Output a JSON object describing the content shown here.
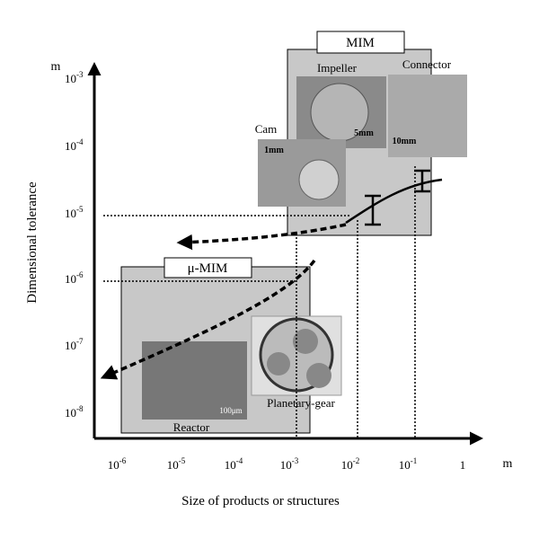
{
  "y_axis": {
    "unit": "m",
    "label": "Dimensional tolerance",
    "ticks": [
      {
        "base": "10",
        "exponent": "-3"
      },
      {
        "base": "10",
        "exponent": "-4"
      },
      {
        "base": "10",
        "exponent": "-5"
      },
      {
        "base": "10",
        "exponent": "-6"
      },
      {
        "base": "10",
        "exponent": "-7"
      },
      {
        "base": "10",
        "exponent": "-8"
      }
    ]
  },
  "x_axis": {
    "unit": "m",
    "label": "Size of products or structures",
    "ticks": [
      {
        "base": "10",
        "exponent": "-6"
      },
      {
        "base": "10",
        "exponent": "-5"
      },
      {
        "base": "10",
        "exponent": "-4"
      },
      {
        "base": "10",
        "exponent": "-3"
      },
      {
        "base": "10",
        "exponent": "-2"
      },
      {
        "base": "10",
        "exponent": "-1"
      },
      {
        "base": "1"
      }
    ]
  },
  "regions": [
    {
      "label": "MIM"
    },
    {
      "label": "μ-MIM"
    }
  ],
  "photos": [
    {
      "label": "Impeller",
      "scale": "5mm"
    },
    {
      "label": "Connector",
      "scale": "10mm"
    },
    {
      "label": "Cam",
      "scale": "1mm"
    },
    {
      "label": "Reactor",
      "scale": "100μm"
    },
    {
      "label": "Planetary-gear"
    }
  ]
}
